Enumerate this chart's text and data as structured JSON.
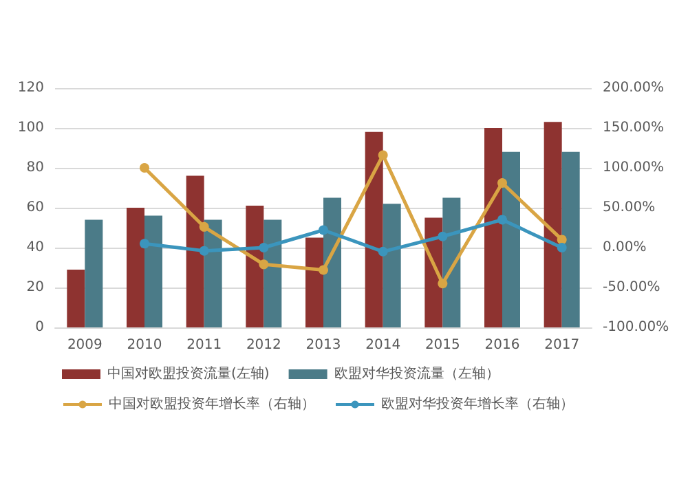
{
  "chart_data": {
    "type": "bar",
    "categories": [
      "2009",
      "2010",
      "2011",
      "2012",
      "2013",
      "2014",
      "2015",
      "2016",
      "2017"
    ],
    "series": [
      {
        "name": "中国对欧盟投资流量(左轴)",
        "color": "#8e3330",
        "values": [
          29,
          60,
          76,
          61,
          45,
          98,
          55,
          100,
          103
        ]
      },
      {
        "name": "欧盟对华投资流量（左轴）",
        "color": "#4b7b88",
        "values": [
          54,
          56,
          54,
          54,
          65,
          62,
          65,
          88,
          88
        ]
      },
      {
        "name": "中国对欧盟投资年增长率（右轴）",
        "type": "line",
        "axis": "y2",
        "color": "#d9a544",
        "values": [
          null,
          100,
          26,
          -21,
          -28,
          116,
          -45,
          81,
          10
        ]
      },
      {
        "name": "欧盟对华投资年增长率（右轴）",
        "type": "line",
        "axis": "y2",
        "color": "#3b95bd",
        "values": [
          null,
          5,
          -4,
          0,
          22,
          -5,
          14,
          35,
          0
        ]
      }
    ],
    "ylim": [
      0,
      120
    ],
    "yticks": [
      0,
      20,
      40,
      60,
      80,
      100,
      120
    ],
    "y2lim": [
      -100,
      200
    ],
    "y2ticks": [
      {
        "value": -100,
        "label": "-100.00%"
      },
      {
        "value": -50,
        "label": "-50.00%"
      },
      {
        "value": 0,
        "label": "0.00%"
      },
      {
        "value": 50,
        "label": "50.00%"
      },
      {
        "value": 100,
        "label": "100.00%"
      },
      {
        "value": 150,
        "label": "150.00%"
      },
      {
        "value": 200,
        "label": "200.00%"
      }
    ],
    "grid": "y",
    "legend": "bottom",
    "marker": "circle"
  }
}
